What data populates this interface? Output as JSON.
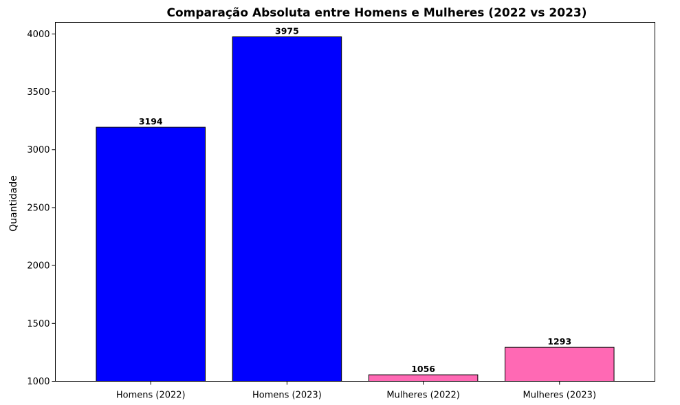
{
  "chart_data": {
    "type": "bar",
    "title": "Comparação Absoluta entre Homens e Mulheres (2022 vs 2023)",
    "xlabel": "",
    "ylabel": "Quantidade",
    "categories": [
      "Homens (2022)",
      "Homens (2023)",
      "Mulheres (2022)",
      "Mulheres (2023)"
    ],
    "values": [
      3194,
      3975,
      1056,
      1293
    ],
    "value_labels": [
      "3194",
      "3975",
      "1056",
      "1293"
    ],
    "bar_colors": [
      "#0000ff",
      "#0000ff",
      "#ff69b4",
      "#ff69b4"
    ],
    "edge_color": "#000000",
    "ylim": [
      1000,
      4100
    ],
    "yticks": [
      1000,
      1500,
      2000,
      2500,
      3000,
      3500,
      4000
    ],
    "ytick_labels": [
      "1000",
      "1500",
      "2000",
      "2500",
      "3000",
      "3500",
      "4000"
    ],
    "grid": false,
    "legend": "none"
  }
}
